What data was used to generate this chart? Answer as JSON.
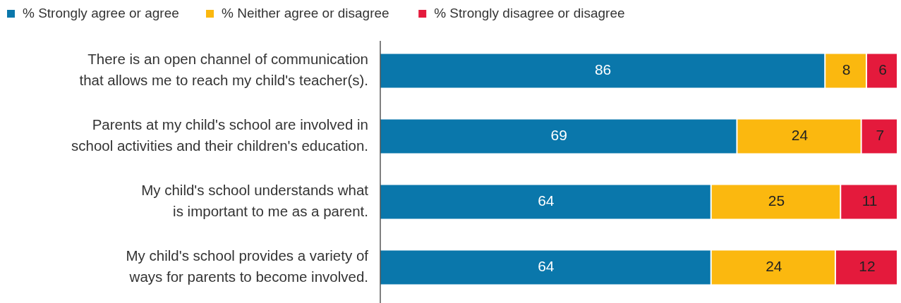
{
  "chart_data": {
    "type": "bar",
    "orientation": "horizontal",
    "stacked": true,
    "data_labels": true,
    "legend": "top left",
    "categories": [
      "There is an open channel of communication\nthat allows me to reach my child's teacher(s).",
      "Parents at my child's school are involved in\nschool activities and their children's education.",
      "My child's school understands what\nis important to me as a parent.",
      "My child's school provides a variety of\nways for parents to become involved."
    ],
    "series": [
      {
        "name": "% Strongly agree or agree",
        "color": "#0a77ab",
        "values": [
          86,
          69,
          64,
          64
        ]
      },
      {
        "name": "% Neither agree or disagree",
        "color": "#fbb80f",
        "values": [
          8,
          24,
          25,
          24
        ]
      },
      {
        "name": "% Strongly disagree or disagree",
        "color": "#e41a3c",
        "values": [
          6,
          7,
          11,
          12
        ]
      }
    ]
  }
}
